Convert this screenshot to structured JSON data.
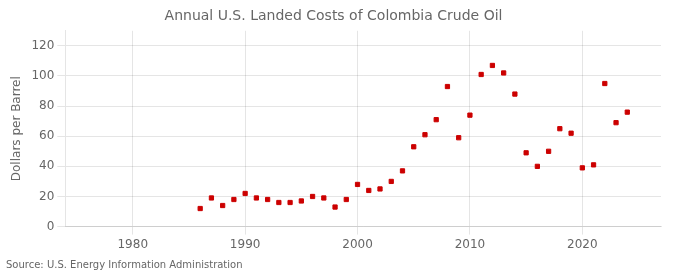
{
  "chart_data": {
    "type": "scatter",
    "title": "Annual U.S. Landed Costs of Colombia Crude Oil",
    "ylabel": "Dollars per Barrel",
    "source": "Source: U.S. Energy Information Administration",
    "x": [
      1986,
      1987,
      1988,
      1989,
      1990,
      1991,
      1992,
      1993,
      1994,
      1995,
      1996,
      1997,
      1998,
      1999,
      2000,
      2001,
      2002,
      2003,
      2004,
      2005,
      2006,
      2007,
      2008,
      2009,
      2010,
      2011,
      2012,
      2013,
      2014,
      2015,
      2016,
      2017,
      2018,
      2019,
      2020,
      2021,
      2022,
      2023,
      2024
    ],
    "values": [
      12,
      19,
      14,
      18,
      22,
      19,
      18,
      16,
      16,
      17,
      20,
      19,
      13,
      18,
      28,
      24,
      25,
      30,
      37,
      53,
      61,
      71,
      93,
      59,
      74,
      101,
      107,
      102,
      88,
      49,
      40,
      50,
      65,
      62,
      39,
      41,
      95,
      69,
      76
    ],
    "color": "#cc0000",
    "marker": "square",
    "xlim": [
      1974,
      2027
    ],
    "ylim": [
      0,
      130
    ],
    "xticks": [
      1980,
      1990,
      2000,
      2010,
      2020
    ],
    "yticks": [
      0,
      20,
      40,
      60,
      80,
      100,
      120
    ],
    "grid": true
  }
}
